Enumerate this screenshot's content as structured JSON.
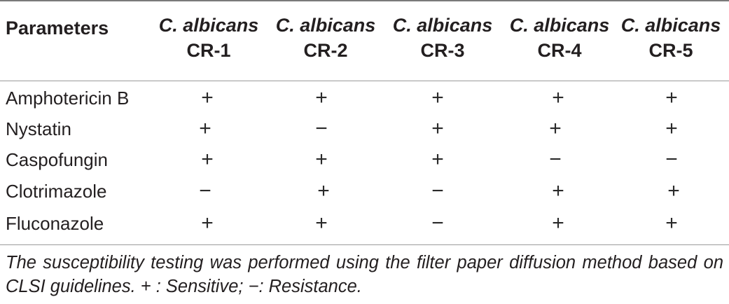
{
  "table": {
    "param_header": "Parameters",
    "columns": [
      {
        "species": "C. albicans",
        "strain": "CR-1"
      },
      {
        "species": "C. albicans",
        "strain": "CR-2"
      },
      {
        "species": "C. albicans",
        "strain": "CR-3"
      },
      {
        "species": "C. albicans",
        "strain": "CR-4"
      },
      {
        "species": "C. albicans",
        "strain": "CR-5"
      }
    ],
    "rows": [
      {
        "label": "Amphotericin B",
        "values": [
          "+",
          "+",
          "+",
          "+",
          "+"
        ]
      },
      {
        "label": "Nystatin",
        "values": [
          "+",
          "−",
          "+",
          "+",
          "+"
        ]
      },
      {
        "label": "Caspofungin",
        "values": [
          "+",
          "+",
          "+",
          "−",
          "−"
        ]
      },
      {
        "label": "Clotrimazole",
        "values": [
          "−",
          "+",
          "−",
          "+",
          "+"
        ]
      },
      {
        "label": "Fluconazole",
        "values": [
          "+",
          "+",
          "−",
          "+",
          "+"
        ]
      }
    ],
    "footnote": "The susceptibility testing was performed using the filter paper diffusion method based on CLSI guidelines. + : Sensitive; −: Resistance."
  }
}
